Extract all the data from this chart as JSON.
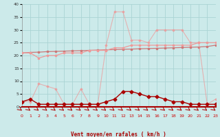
{
  "x": [
    0,
    1,
    2,
    3,
    4,
    5,
    6,
    7,
    8,
    9,
    10,
    11,
    12,
    13,
    14,
    15,
    16,
    17,
    18,
    19,
    20,
    21,
    22,
    23
  ],
  "line_flat": [
    21,
    21.2,
    21.3,
    21.5,
    21.6,
    21.7,
    21.8,
    21.9,
    22.0,
    22.1,
    22.2,
    22.3,
    22.4,
    22.5,
    22.6,
    22.7,
    22.8,
    22.9,
    23.0,
    23.1,
    23.2,
    23.3,
    23.5,
    24.0
  ],
  "line_med": [
    21,
    21,
    19,
    20,
    20,
    21,
    21,
    21,
    22,
    22,
    22,
    23,
    23,
    24,
    24,
    24,
    24,
    24,
    24,
    24,
    24,
    25,
    25,
    25
  ],
  "line_dark": [
    2,
    3,
    1,
    1,
    1,
    1,
    1,
    1,
    1,
    1,
    2,
    3,
    6,
    6,
    5,
    4,
    4,
    3,
    2,
    2,
    1,
    1,
    1,
    1
  ],
  "line_light": [
    2,
    2,
    9,
    8,
    7,
    1,
    1,
    7,
    1,
    1,
    24,
    37,
    37,
    26,
    26,
    25,
    30,
    30,
    30,
    30,
    25,
    25,
    1,
    3
  ],
  "xlabel": "Vent moyen/en rafales ( km/h )",
  "yticks": [
    0,
    5,
    10,
    15,
    20,
    25,
    30,
    35,
    40
  ],
  "xticks": [
    0,
    1,
    2,
    3,
    4,
    5,
    6,
    7,
    8,
    9,
    10,
    11,
    12,
    13,
    14,
    15,
    16,
    17,
    18,
    19,
    20,
    21,
    22,
    23
  ],
  "ylim": [
    0,
    40
  ],
  "xlim": [
    0,
    23
  ],
  "bg_color": "#cceaea",
  "grid_color": "#b0d8d8",
  "color_dark_red": "#aa0000",
  "color_mid_red": "#dd5555",
  "color_light_red": "#ee9999",
  "color_flat": "#cc7777"
}
